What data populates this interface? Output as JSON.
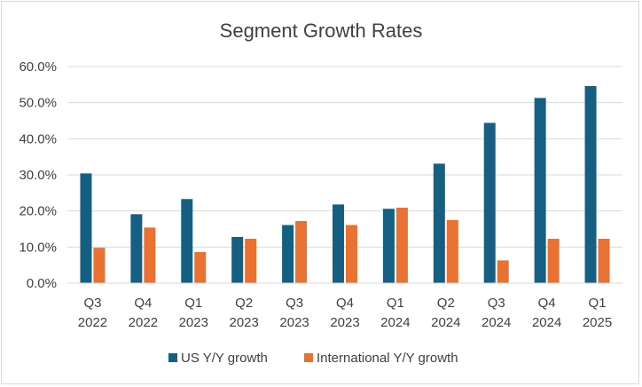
{
  "chart_data": {
    "type": "bar",
    "title": "Segment Growth Rates",
    "xlabel": "",
    "ylabel": "",
    "ylim": [
      0,
      60
    ],
    "yticks": [
      "0.0%",
      "10.0%",
      "20.0%",
      "30.0%",
      "40.0%",
      "50.0%",
      "60.0%"
    ],
    "grid": true,
    "legend_position": "bottom",
    "categories": [
      [
        "Q3",
        "2022"
      ],
      [
        "Q4",
        "2022"
      ],
      [
        "Q1",
        "2023"
      ],
      [
        "Q2",
        "2023"
      ],
      [
        "Q3",
        "2023"
      ],
      [
        "Q4",
        "2023"
      ],
      [
        "Q1",
        "2024"
      ],
      [
        "Q2",
        "2024"
      ],
      [
        "Q3",
        "2024"
      ],
      [
        "Q4",
        "2024"
      ],
      [
        "Q1",
        "2025"
      ]
    ],
    "series": [
      {
        "name": "US Y/Y growth",
        "color": "#156082",
        "values": [
          30.4,
          19.1,
          23.3,
          12.8,
          16.1,
          21.8,
          20.6,
          33.1,
          44.4,
          51.3,
          54.6
        ]
      },
      {
        "name": "International Y/Y growth",
        "color": "#E97132",
        "values": [
          9.8,
          15.4,
          8.6,
          12.3,
          17.2,
          16.1,
          20.9,
          17.5,
          6.3,
          12.3,
          12.3
        ]
      }
    ]
  }
}
